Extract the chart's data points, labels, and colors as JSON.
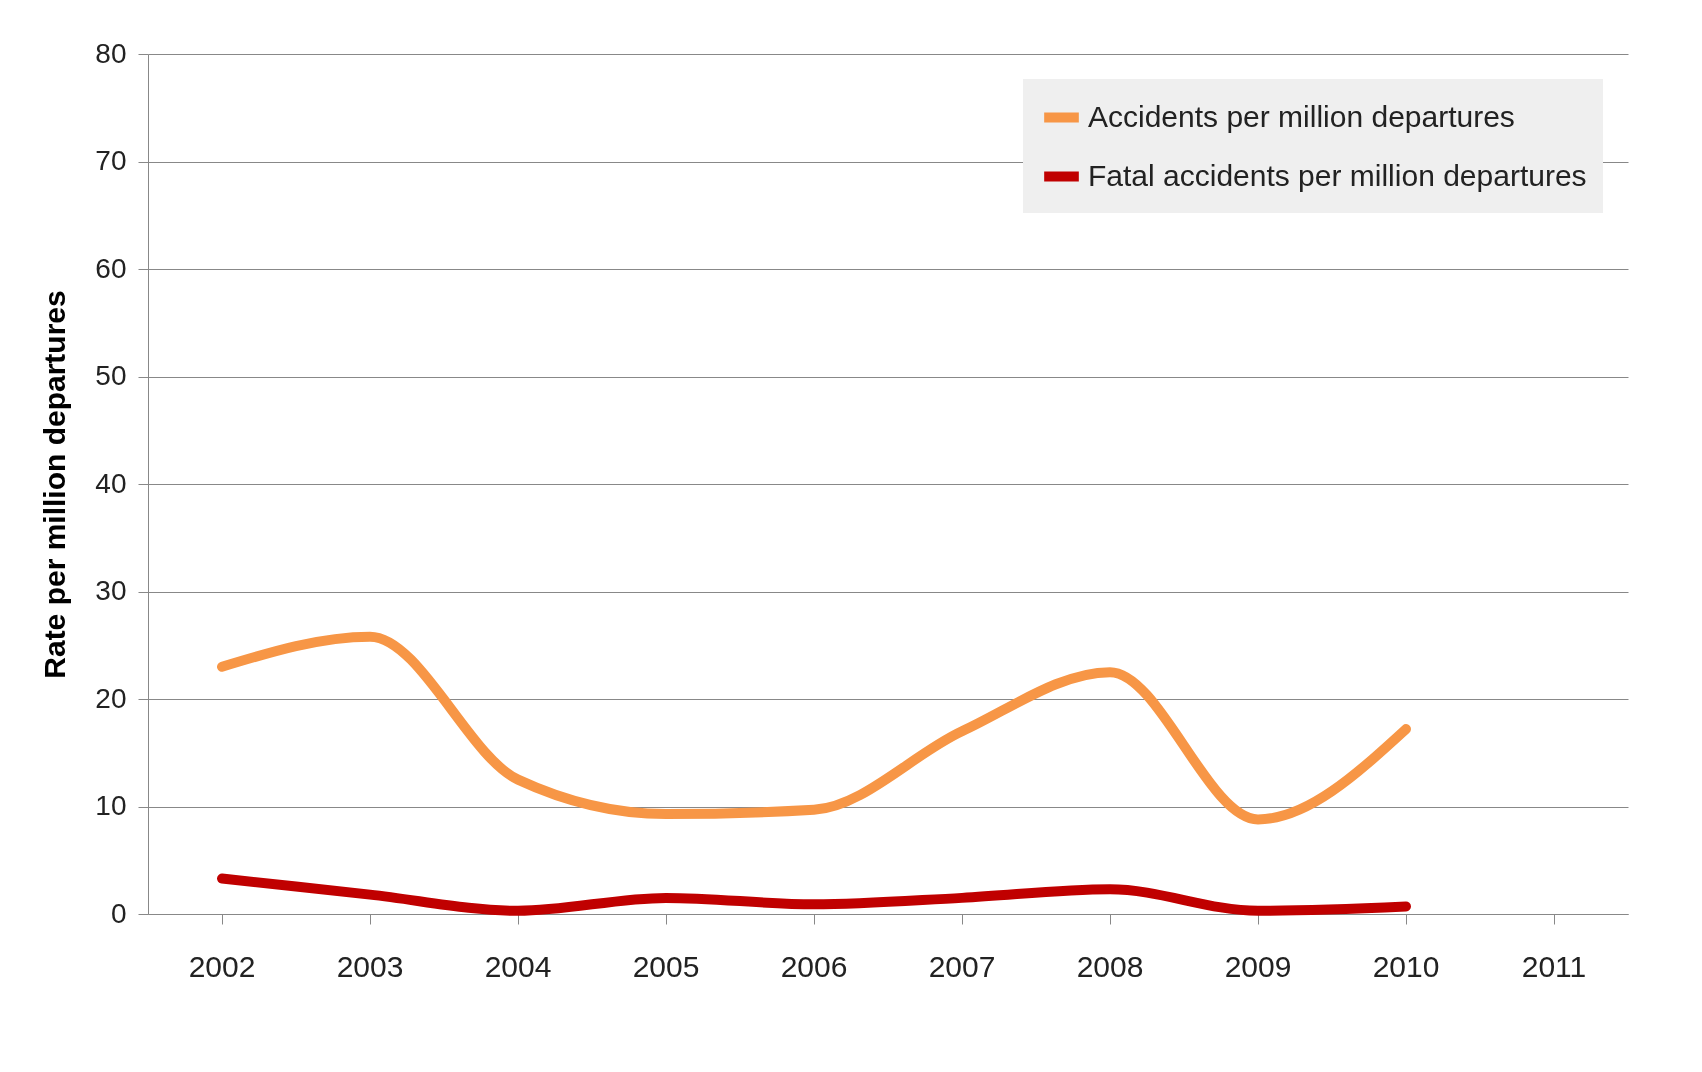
{
  "chart_data": {
    "type": "line",
    "ylabel": "Rate per million departures",
    "categories": [
      "2002",
      "2003",
      "2004",
      "2005",
      "2006",
      "2007",
      "2008",
      "2009",
      "2010",
      "2011"
    ],
    "series": [
      {
        "name": "Accidents per million departures",
        "color": "#f79646",
        "values": [
          23,
          25.8,
          12.5,
          9.3,
          9.7,
          17,
          22.5,
          8.8,
          17.2,
          null
        ]
      },
      {
        "name": "Fatal accidents per million departures",
        "color": "#c00000",
        "values": [
          3.3,
          1.8,
          0.3,
          1.5,
          0.9,
          1.5,
          2.3,
          0.3,
          0.7,
          null
        ]
      }
    ],
    "ylim": [
      0,
      80
    ],
    "yticks": [
      0,
      10,
      20,
      30,
      40,
      50,
      60,
      70,
      80
    ],
    "grid": "y",
    "legend": "top right",
    "marker": "none",
    "line_style": "solid"
  }
}
